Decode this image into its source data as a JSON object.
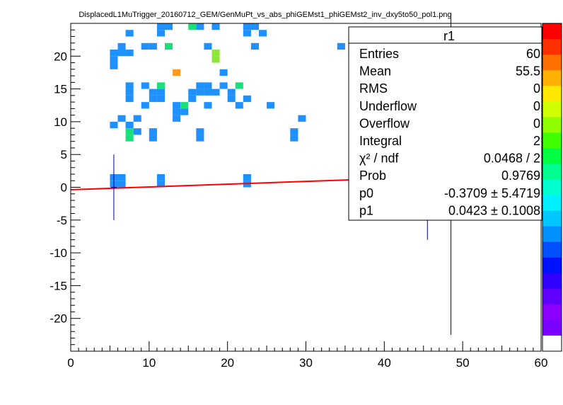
{
  "chart_data": {
    "type": "heatmap",
    "title": "DisplacedL1MuTrigger_20160712_GEM/GenMuPt_vs_abs_phiGEMst1_phiGEMst2_inv_dxy5to50_pol1.png",
    "xlim": [
      0,
      60
    ],
    "ylim": [
      -25,
      25
    ],
    "x_ticks": [
      {
        "value": 0,
        "label": "0"
      },
      {
        "value": 10,
        "label": "10"
      },
      {
        "value": 20,
        "label": "20"
      },
      {
        "value": 30,
        "label": "30"
      },
      {
        "value": 40,
        "label": "40"
      },
      {
        "value": 50,
        "label": "50"
      },
      {
        "value": 60,
        "label": "60"
      }
    ],
    "y_ticks": [
      {
        "value": 20,
        "label": "20"
      },
      {
        "value": 15,
        "label": "15"
      },
      {
        "value": 10,
        "label": "10"
      },
      {
        "value": 5,
        "label": "5"
      },
      {
        "value": 0,
        "label": "0"
      },
      {
        "value": -5,
        "label": "-5"
      },
      {
        "value": -10,
        "label": "-10"
      },
      {
        "value": -15,
        "label": "-15"
      },
      {
        "value": -20,
        "label": "-20"
      }
    ],
    "cells": [
      {
        "x": 7,
        "y": 23.5,
        "c": "#1e90ff"
      },
      {
        "x": 11,
        "y": 24.5,
        "c": "#1e90ff"
      },
      {
        "x": 12,
        "y": 24.5,
        "c": "#1e90ff"
      },
      {
        "x": 11,
        "y": 23.5,
        "c": "#1e90ff"
      },
      {
        "x": 15,
        "y": 24.5,
        "c": "#19e07a"
      },
      {
        "x": 16,
        "y": 24.5,
        "c": "#1e90ff"
      },
      {
        "x": 18,
        "y": 24.5,
        "c": "#1e90ff"
      },
      {
        "x": 22,
        "y": 24.5,
        "c": "#1e90ff"
      },
      {
        "x": 23,
        "y": 24.5,
        "c": "#1e90ff"
      },
      {
        "x": 22,
        "y": 23.5,
        "c": "#1e90ff"
      },
      {
        "x": 24,
        "y": 23.5,
        "c": "#1e90ff"
      },
      {
        "x": 6,
        "y": 21.5,
        "c": "#1e90ff"
      },
      {
        "x": 9,
        "y": 21.5,
        "c": "#1e90ff"
      },
      {
        "x": 10,
        "y": 21.5,
        "c": "#1e90ff"
      },
      {
        "x": 12,
        "y": 21.5,
        "c": "#19e07a"
      },
      {
        "x": 17,
        "y": 21.5,
        "c": "#1e90ff"
      },
      {
        "x": 23,
        "y": 21.5,
        "c": "#1e90ff"
      },
      {
        "x": 34,
        "y": 21.5,
        "c": "#1e90ff"
      },
      {
        "x": 45,
        "y": 21.5,
        "c": "#1e90ff"
      },
      {
        "x": 5,
        "y": 20.5,
        "c": "#1e90ff"
      },
      {
        "x": 6,
        "y": 20.5,
        "c": "#1e90ff"
      },
      {
        "x": 7,
        "y": 20.5,
        "c": "#1e90ff"
      },
      {
        "x": 18,
        "y": 20.5,
        "c": "#8ee63a"
      },
      {
        "x": 5,
        "y": 19.5,
        "c": "#1e90ff"
      },
      {
        "x": 18,
        "y": 19.5,
        "c": "#8ee63a"
      },
      {
        "x": 5,
        "y": 18.5,
        "c": "#1e90ff"
      },
      {
        "x": 13,
        "y": 17.5,
        "c": "#ff9a1f"
      },
      {
        "x": 19,
        "y": 17.5,
        "c": "#1e90ff"
      },
      {
        "x": 39,
        "y": 17.5,
        "c": "#1e90ff"
      },
      {
        "x": 48,
        "y": 17.5,
        "c": "#1e90ff"
      },
      {
        "x": 7,
        "y": 15.5,
        "c": "#1e90ff"
      },
      {
        "x": 9,
        "y": 15.5,
        "c": "#1e90ff"
      },
      {
        "x": 11,
        "y": 15.5,
        "c": "#19e07a"
      },
      {
        "x": 16,
        "y": 15.5,
        "c": "#1e90ff"
      },
      {
        "x": 17,
        "y": 15.5,
        "c": "#1e90ff"
      },
      {
        "x": 19,
        "y": 15.5,
        "c": "#1e90ff"
      },
      {
        "x": 21,
        "y": 15.5,
        "c": "#19e07a"
      },
      {
        "x": 7,
        "y": 14.5,
        "c": "#1e90ff"
      },
      {
        "x": 10,
        "y": 14.5,
        "c": "#1e90ff"
      },
      {
        "x": 11,
        "y": 14.5,
        "c": "#1e90ff"
      },
      {
        "x": 15,
        "y": 14.5,
        "c": "#1e90ff"
      },
      {
        "x": 16,
        "y": 14.5,
        "c": "#1e90ff"
      },
      {
        "x": 17,
        "y": 14.5,
        "c": "#1e90ff"
      },
      {
        "x": 18,
        "y": 14.5,
        "c": "#1e90ff"
      },
      {
        "x": 20,
        "y": 14.5,
        "c": "#1e90ff"
      },
      {
        "x": 7,
        "y": 13.5,
        "c": "#1e90ff"
      },
      {
        "x": 10,
        "y": 13.5,
        "c": "#1e90ff"
      },
      {
        "x": 11,
        "y": 13.5,
        "c": "#1e90ff"
      },
      {
        "x": 15,
        "y": 13.5,
        "c": "#1e90ff"
      },
      {
        "x": 20,
        "y": 13.5,
        "c": "#1e90ff"
      },
      {
        "x": 22,
        "y": 13.5,
        "c": "#1e90ff"
      },
      {
        "x": 9,
        "y": 12.5,
        "c": "#1e90ff"
      },
      {
        "x": 13,
        "y": 12.5,
        "c": "#1e90ff"
      },
      {
        "x": 14,
        "y": 12.5,
        "c": "#19e07a"
      },
      {
        "x": 17,
        "y": 12.5,
        "c": "#1e90ff"
      },
      {
        "x": 21,
        "y": 12.5,
        "c": "#1e90ff"
      },
      {
        "x": 25,
        "y": 12.5,
        "c": "#1e90ff"
      },
      {
        "x": 13,
        "y": 11.5,
        "c": "#1e90ff"
      },
      {
        "x": 14,
        "y": 11.5,
        "c": "#1e90ff"
      },
      {
        "x": 6,
        "y": 10.5,
        "c": "#1e90ff"
      },
      {
        "x": 8,
        "y": 10.5,
        "c": "#1e90ff"
      },
      {
        "x": 13,
        "y": 10.5,
        "c": "#1e90ff"
      },
      {
        "x": 29,
        "y": 10.5,
        "c": "#1e90ff"
      },
      {
        "x": 5,
        "y": 9.5,
        "c": "#1e90ff"
      },
      {
        "x": 7,
        "y": 9.5,
        "c": "#1e90ff"
      },
      {
        "x": 7,
        "y": 8.5,
        "c": "#19e07a"
      },
      {
        "x": 8,
        "y": 8.5,
        "c": "#1e90ff"
      },
      {
        "x": 10,
        "y": 8.5,
        "c": "#1e90ff"
      },
      {
        "x": 16,
        "y": 8.5,
        "c": "#1e90ff"
      },
      {
        "x": 28,
        "y": 8.5,
        "c": "#1e90ff"
      },
      {
        "x": 7,
        "y": 7.5,
        "c": "#19e07a"
      },
      {
        "x": 10,
        "y": 7.5,
        "c": "#1e90ff"
      },
      {
        "x": 16,
        "y": 7.5,
        "c": "#1e90ff"
      },
      {
        "x": 28,
        "y": 7.5,
        "c": "#1e90ff"
      },
      {
        "x": 5,
        "y": 1.5,
        "c": "#1e90ff"
      },
      {
        "x": 6,
        "y": 1.5,
        "c": "#1e90ff"
      },
      {
        "x": 11,
        "y": 1.5,
        "c": "#1e90ff"
      },
      {
        "x": 22,
        "y": 1.5,
        "c": "#1e90ff"
      },
      {
        "x": 5,
        "y": 0.5,
        "c": "#1e90ff"
      },
      {
        "x": 6,
        "y": 0.5,
        "c": "#1e90ff"
      },
      {
        "x": 11,
        "y": 0.5,
        "c": "#1e90ff"
      },
      {
        "x": 22,
        "y": 0.5,
        "c": "#1e90ff"
      },
      {
        "x": 54,
        "y": 0.5,
        "c": "#1e90ff"
      },
      {
        "x": 55,
        "y": 0.5,
        "c": "#1e90ff"
      }
    ],
    "profile_points": [
      {
        "x": 5.5,
        "y": 0,
        "err": 5
      },
      {
        "x": 45.5,
        "y": 0,
        "err": 8
      },
      {
        "x": 48.5,
        "y": 2,
        "err": 24.5
      }
    ],
    "fit": {
      "p0": -0.3709,
      "p1": 0.0423,
      "color": "#ff0000"
    },
    "errorbar_color": "#00008b",
    "stats": {
      "name": "r1",
      "rows": [
        {
          "label": "Entries",
          "value": "60"
        },
        {
          "label": "Mean",
          "value": "55.5"
        },
        {
          "label": "RMS",
          "value": "0"
        },
        {
          "label": "Underflow",
          "value": "0"
        },
        {
          "label": "Overflow",
          "value": "0"
        },
        {
          "label": "Integral",
          "value": "2"
        },
        {
          "label": "χ² / ndf",
          "value": "0.0468 / 2"
        },
        {
          "label": "Prob",
          "value": "0.9769"
        },
        {
          "label": "p0",
          "value": "-0.3709 ± 5.4719"
        },
        {
          "label": "p1",
          "value": "0.0423 ± 0.1008"
        }
      ]
    },
    "palette": [
      "#ffffff",
      "#7a00ff",
      "#8a00ff",
      "#5f00ff",
      "#3000ff",
      "#0011ff",
      "#0050ff",
      "#0090ff",
      "#00c8ff",
      "#00f0ff",
      "#00ffd0",
      "#00ff90",
      "#00ff40",
      "#40ff00",
      "#90ff00",
      "#d0ff00",
      "#ffe800",
      "#ffb000",
      "#ff7000",
      "#ff3000",
      "#ff0000"
    ]
  }
}
